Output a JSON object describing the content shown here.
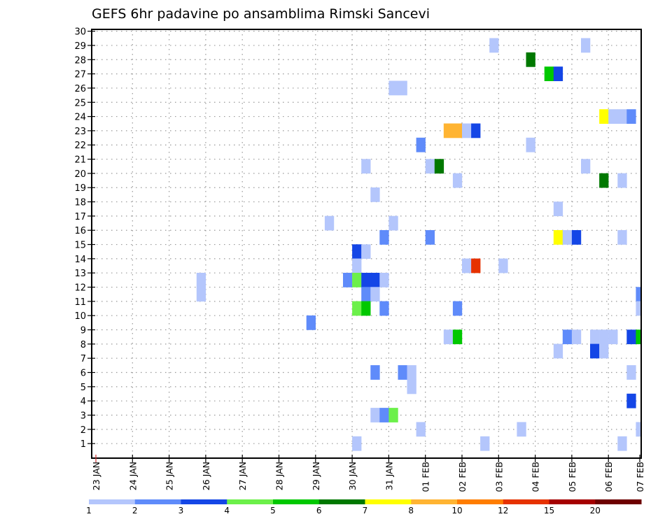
{
  "chart_data": {
    "type": "heatmap",
    "title": "GEFS 6hr padavine po ansamblima Rimski Sancevi",
    "xlabel": "",
    "ylabel": "",
    "x_unit": "hours since 23 JAN 00Z (6-hourly steps)",
    "x_tick_labels": [
      "23 JAN",
      "24 JAN",
      "25 JAN",
      "26 JAN",
      "27 JAN",
      "28 JAN",
      "29 JAN",
      "30 JAN",
      "31 JAN",
      "01 FEB",
      "02 FEB",
      "03 FEB",
      "04 FEB",
      "05 FEB",
      "06 FEB",
      "07 FEB"
    ],
    "y_tick_labels": [
      "1",
      "2",
      "3",
      "4",
      "5",
      "6",
      "7",
      "8",
      "9",
      "10",
      "11",
      "12",
      "13",
      "14",
      "15",
      "16",
      "17",
      "18",
      "19",
      "20",
      "21",
      "22",
      "23",
      "24",
      "25",
      "26",
      "27",
      "28",
      "29",
      "30"
    ],
    "ylim": [
      0,
      30
    ],
    "grid": true,
    "colorbar": {
      "placement": "bottom",
      "labels": [
        "1",
        "2",
        "3",
        "4",
        "5",
        "6",
        "7",
        "8",
        "10",
        "12",
        "15",
        "20"
      ],
      "colors": [
        "#b4c6fc",
        "#5f8bfa",
        "#1446e6",
        "#6cf04a",
        "#00c800",
        "#007800",
        "#ffff00",
        "#ffb432",
        "#ff7d00",
        "#e63200",
        "#a50000",
        "#6e0000"
      ]
    },
    "cells_fields": [
      "hour",
      "member",
      "bin"
    ],
    "cells": [
      [
        66,
        12.5,
        0
      ],
      [
        66,
        11.5,
        0
      ],
      [
        138,
        9.5,
        1
      ],
      [
        150,
        16.5,
        0
      ],
      [
        162,
        12.5,
        1
      ],
      [
        168,
        14.5,
        2
      ],
      [
        174,
        14.5,
        0
      ],
      [
        168,
        13.5,
        0
      ],
      [
        168,
        12.5,
        3
      ],
      [
        174,
        12.5,
        2
      ],
      [
        180,
        12.5,
        2
      ],
      [
        186,
        12.5,
        0
      ],
      [
        174,
        11.5,
        1
      ],
      [
        180,
        11.5,
        0
      ],
      [
        168,
        10.5,
        3
      ],
      [
        174,
        10.5,
        4
      ],
      [
        186,
        10.5,
        1
      ],
      [
        168,
        1,
        0
      ],
      [
        180,
        3,
        0
      ],
      [
        186,
        3,
        1
      ],
      [
        192,
        3,
        3
      ],
      [
        180,
        6,
        1
      ],
      [
        180,
        18.5,
        0
      ],
      [
        174,
        20.5,
        0
      ],
      [
        186,
        15.5,
        1
      ],
      [
        192,
        16.5,
        0
      ],
      [
        192,
        26,
        0
      ],
      [
        198,
        26,
        0
      ],
      [
        198,
        6,
        1
      ],
      [
        204,
        6,
        0
      ],
      [
        204,
        5,
        0
      ],
      [
        210,
        22,
        1
      ],
      [
        210,
        2,
        0
      ],
      [
        216,
        20.5,
        0
      ],
      [
        222,
        20.5,
        5
      ],
      [
        216,
        15.5,
        1
      ],
      [
        228,
        23,
        7
      ],
      [
        234,
        23,
        7
      ],
      [
        240,
        23,
        0
      ],
      [
        246,
        23,
        2
      ],
      [
        234,
        19.5,
        0
      ],
      [
        234,
        10.5,
        1
      ],
      [
        228,
        8.5,
        0
      ],
      [
        234,
        8.5,
        4
      ],
      [
        240,
        13.5,
        0
      ],
      [
        246,
        13.5,
        9
      ],
      [
        252,
        1,
        0
      ],
      [
        258,
        29,
        0
      ],
      [
        264,
        13.5,
        0
      ],
      [
        276,
        2,
        0
      ],
      [
        282,
        28,
        5
      ],
      [
        282,
        22,
        0
      ],
      [
        294,
        27,
        4
      ],
      [
        300,
        27,
        2
      ],
      [
        300,
        17.5,
        0
      ],
      [
        300,
        15.5,
        6
      ],
      [
        306,
        15.5,
        0
      ],
      [
        312,
        15.5,
        2
      ],
      [
        300,
        7.5,
        0
      ],
      [
        306,
        8.5,
        1
      ],
      [
        312,
        8.5,
        0
      ],
      [
        318,
        29,
        0
      ],
      [
        318,
        20.5,
        0
      ],
      [
        324,
        8.5,
        0
      ],
      [
        330,
        8.5,
        0
      ],
      [
        336,
        8.5,
        0
      ],
      [
        324,
        7.5,
        2
      ],
      [
        330,
        7.5,
        0
      ],
      [
        330,
        24,
        6
      ],
      [
        336,
        24,
        0
      ],
      [
        342,
        24,
        0
      ],
      [
        348,
        24,
        1
      ],
      [
        330,
        19.5,
        5
      ],
      [
        342,
        19.5,
        0
      ],
      [
        342,
        15.5,
        0
      ],
      [
        342,
        1,
        0
      ],
      [
        348,
        8.5,
        2
      ],
      [
        354,
        8.5,
        4
      ],
      [
        348,
        6,
        0
      ],
      [
        348,
        4,
        2
      ],
      [
        354,
        11.5,
        1
      ],
      [
        354,
        10.5,
        0
      ],
      [
        354,
        2,
        0
      ]
    ]
  }
}
